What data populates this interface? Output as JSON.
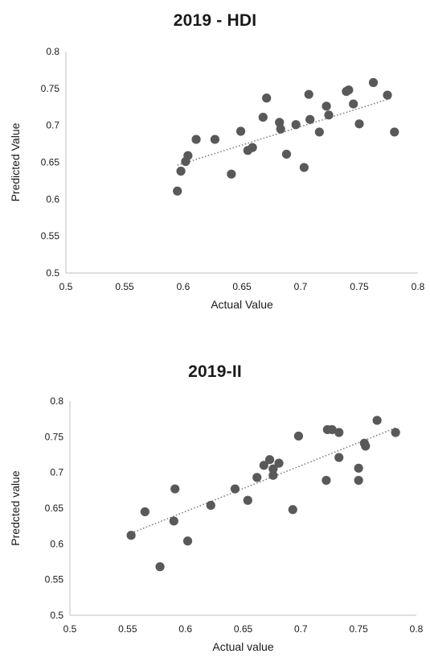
{
  "chart_data": [
    {
      "type": "scatter",
      "title": "2019 - HDI",
      "xlabel": "Actual Value",
      "ylabel": "Predicted Value",
      "xlim": [
        0.5,
        0.8
      ],
      "ylim": [
        0.5,
        0.8
      ],
      "xticks": [
        "0.5",
        "0.55",
        "0.6",
        "0.65",
        "0.7",
        "0.75",
        "0.8"
      ],
      "yticks": [
        "0.5",
        "0.55",
        "0.6",
        "0.65",
        "0.7",
        "0.75",
        "0.8"
      ],
      "trendline": {
        "style": "dotted",
        "x": [
          0.595,
          0.778
        ],
        "y": [
          0.646,
          0.737
        ]
      },
      "marker_color": "#595959",
      "x": [
        0.595,
        0.598,
        0.602,
        0.604,
        0.611,
        0.627,
        0.641,
        0.649,
        0.655,
        0.659,
        0.668,
        0.671,
        0.682,
        0.683,
        0.688,
        0.696,
        0.703,
        0.707,
        0.708,
        0.716,
        0.722,
        0.724,
        0.739,
        0.741,
        0.745,
        0.75,
        0.762,
        0.774,
        0.78
      ],
      "y": [
        0.611,
        0.638,
        0.651,
        0.659,
        0.681,
        0.681,
        0.634,
        0.692,
        0.666,
        0.67,
        0.711,
        0.737,
        0.704,
        0.695,
        0.661,
        0.701,
        0.643,
        0.742,
        0.708,
        0.691,
        0.726,
        0.714,
        0.746,
        0.748,
        0.729,
        0.702,
        0.758,
        0.741,
        0.691
      ]
    },
    {
      "type": "scatter",
      "title": "2019-II",
      "xlabel": "Actual value",
      "ylabel": "Predcted value",
      "xlim": [
        0.5,
        0.8
      ],
      "ylim": [
        0.5,
        0.8
      ],
      "xticks": [
        "0.5",
        "0.55",
        "0.6",
        "0.65",
        "0.7",
        "0.75",
        "0.8"
      ],
      "yticks": [
        "0.5",
        "0.55",
        "0.6",
        "0.65",
        "0.7",
        "0.75",
        "0.8"
      ],
      "trendline": {
        "style": "dotted",
        "x": [
          0.553,
          0.783
        ],
        "y": [
          0.615,
          0.763
        ]
      },
      "marker_color": "#595959",
      "x": [
        0.553,
        0.565,
        0.578,
        0.59,
        0.591,
        0.602,
        0.622,
        0.643,
        0.654,
        0.662,
        0.668,
        0.673,
        0.676,
        0.676,
        0.681,
        0.693,
        0.698,
        0.722,
        0.723,
        0.727,
        0.733,
        0.733,
        0.75,
        0.75,
        0.755,
        0.756,
        0.766,
        0.782
      ],
      "y": [
        0.612,
        0.645,
        0.568,
        0.632,
        0.677,
        0.604,
        0.654,
        0.677,
        0.661,
        0.693,
        0.71,
        0.718,
        0.705,
        0.696,
        0.713,
        0.648,
        0.751,
        0.689,
        0.76,
        0.76,
        0.721,
        0.756,
        0.706,
        0.689,
        0.741,
        0.737,
        0.773,
        0.756
      ]
    }
  ]
}
